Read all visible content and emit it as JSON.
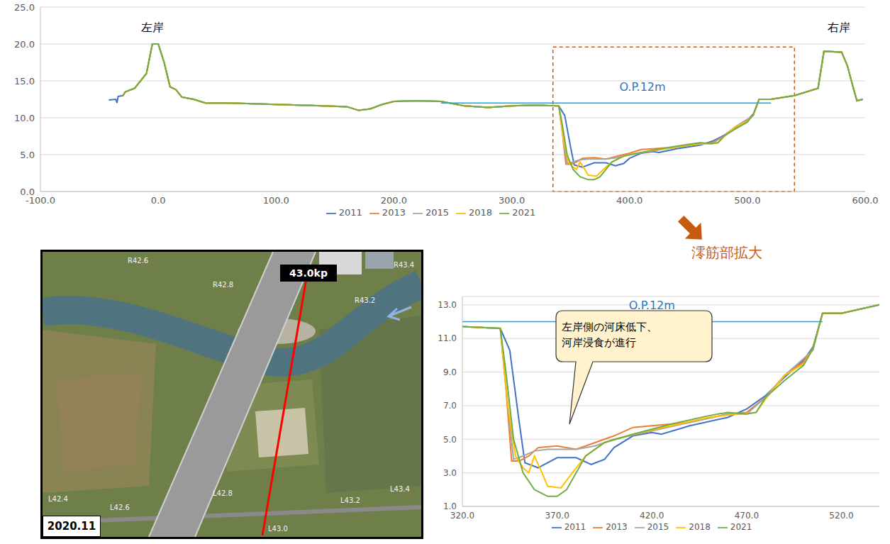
{
  "chart_data": [
    {
      "type": "line",
      "xlim": [
        -100,
        600
      ],
      "xticks": [
        {
          "value": -100,
          "label": "-100.0"
        },
        {
          "value": 0,
          "label": "0.0"
        },
        {
          "value": 100,
          "label": "100.0"
        },
        {
          "value": 200,
          "label": "200.0"
        },
        {
          "value": 300,
          "label": "300.0"
        },
        {
          "value": 400,
          "label": "400.0"
        },
        {
          "value": 500,
          "label": "500.0"
        },
        {
          "value": 600,
          "label": "600.0"
        }
      ],
      "ylim": [
        0,
        25
      ],
      "yticks": [
        {
          "value": 0,
          "label": "0.0"
        },
        {
          "value": 5,
          "label": "5.0"
        },
        {
          "value": 10,
          "label": "10.0"
        },
        {
          "value": 15,
          "label": "15.0"
        },
        {
          "value": 20,
          "label": "20.0"
        },
        {
          "value": 25,
          "label": "25.0"
        }
      ],
      "grid": true,
      "legend": "bottom",
      "annotations": [
        {
          "text": "左岸",
          "x": -5,
          "y": 22.3
        },
        {
          "text": "右岸",
          "x": 578,
          "y": 22.3
        }
      ],
      "reference_line": {
        "text": "O.P.12m",
        "y": 12,
        "x": [
          240,
          520
        ],
        "label_x": 411,
        "label_y": 14.2
      },
      "highlight": {
        "x": [
          335,
          540
        ],
        "y": [
          0,
          19.6
        ]
      },
      "series": [
        {
          "name": "2011",
          "color": "#4472c4",
          "x": [
            -42,
            -36,
            -35,
            -34,
            -30,
            -28,
            -20,
            -10,
            -5,
            0,
            5,
            10,
            15,
            20,
            30,
            40,
            60,
            80,
            100,
            120,
            140,
            160,
            170,
            180,
            190,
            200,
            220,
            240,
            260,
            280,
            300,
            320,
            340,
            345,
            350,
            353,
            360,
            370,
            380,
            388,
            395,
            400,
            410,
            420,
            425,
            440,
            460,
            470,
            480,
            490,
            500,
            505,
            510,
            520,
            540,
            560,
            565,
            580,
            585,
            590,
            593,
            598
          ],
          "values": [
            12.4,
            12.5,
            12.0,
            12.9,
            13.0,
            13.5,
            14.0,
            16.0,
            20.0,
            20.0,
            17.5,
            14.2,
            13.8,
            12.8,
            12.5,
            12.0,
            12.0,
            11.9,
            11.8,
            11.7,
            11.6,
            11.5,
            11.0,
            11.2,
            11.8,
            12.2,
            12.3,
            12.2,
            11.6,
            11.4,
            11.6,
            11.7,
            11.6,
            10.3,
            6.0,
            3.6,
            3.3,
            3.9,
            3.9,
            3.5,
            3.8,
            4.5,
            5.2,
            5.4,
            5.3,
            5.8,
            6.3,
            6.8,
            7.6,
            8.7,
            9.7,
            10.5,
            12.5,
            12.5,
            13.0,
            14.0,
            19.0,
            18.9,
            17.0,
            14.0,
            12.3,
            12.5
          ]
        },
        {
          "name": "2013",
          "color": "#ed7d31",
          "x": [
            -30,
            -28,
            -20,
            -10,
            -5,
            0,
            5,
            10,
            15,
            20,
            30,
            40,
            60,
            80,
            100,
            120,
            140,
            160,
            170,
            180,
            190,
            200,
            220,
            240,
            260,
            280,
            300,
            320,
            340,
            343,
            346,
            350,
            355,
            360,
            370,
            380,
            390,
            400,
            410,
            420,
            440,
            460,
            470,
            480,
            490,
            500,
            505,
            510,
            520,
            540,
            560,
            565,
            580,
            585,
            590,
            593,
            598
          ],
          "values": [
            13.0,
            13.5,
            14.0,
            16.0,
            20.0,
            20.0,
            17.5,
            14.2,
            13.8,
            12.8,
            12.5,
            12.0,
            12.0,
            11.9,
            11.8,
            11.7,
            11.6,
            11.5,
            11.0,
            11.2,
            11.8,
            12.2,
            12.3,
            12.2,
            11.6,
            11.4,
            11.6,
            11.7,
            11.6,
            8.0,
            3.7,
            3.7,
            4.0,
            4.5,
            4.6,
            4.4,
            4.8,
            5.2,
            5.7,
            5.8,
            6.0,
            6.5,
            6.6,
            7.5,
            8.8,
            9.6,
            10.4,
            12.5,
            12.5,
            13.0,
            14.0,
            19.0,
            18.9,
            17.0,
            14.0,
            12.3,
            12.5
          ]
        },
        {
          "name": "2015",
          "color": "#a5a5a5",
          "x": [
            -30,
            -28,
            -20,
            -10,
            -5,
            0,
            5,
            10,
            15,
            20,
            30,
            40,
            60,
            80,
            100,
            120,
            140,
            160,
            170,
            180,
            190,
            200,
            220,
            240,
            260,
            280,
            300,
            320,
            340,
            344,
            347,
            352,
            358,
            365,
            380,
            390,
            400,
            420,
            440,
            460,
            470,
            480,
            490,
            505,
            510,
            520,
            540,
            560,
            565,
            580,
            585,
            590,
            593,
            598
          ],
          "values": [
            13.0,
            13.5,
            14.0,
            16.0,
            20.0,
            20.0,
            17.5,
            14.2,
            13.8,
            12.8,
            12.5,
            12.0,
            12.0,
            11.9,
            11.8,
            11.7,
            11.6,
            11.5,
            11.0,
            11.2,
            11.8,
            12.2,
            12.3,
            12.2,
            11.6,
            11.4,
            11.6,
            11.7,
            11.6,
            7.0,
            3.8,
            4.0,
            4.3,
            4.4,
            4.4,
            4.6,
            5.0,
            5.5,
            6.0,
            6.5,
            6.5,
            7.5,
            8.8,
            10.3,
            12.5,
            12.5,
            13.0,
            14.0,
            19.0,
            18.9,
            17.0,
            14.0,
            12.3,
            12.5
          ]
        },
        {
          "name": "2018",
          "color": "#ffc000",
          "x": [
            -30,
            -28,
            -20,
            -10,
            -5,
            0,
            5,
            10,
            15,
            20,
            30,
            40,
            60,
            80,
            100,
            120,
            140,
            160,
            170,
            180,
            190,
            200,
            220,
            240,
            260,
            280,
            300,
            320,
            340,
            344,
            348,
            352,
            355,
            358,
            362,
            365,
            372,
            378,
            385,
            395,
            410,
            430,
            450,
            465,
            475,
            480,
            490,
            500,
            505,
            510,
            520,
            540,
            560,
            565,
            580,
            585,
            590,
            593,
            598
          ],
          "values": [
            13.0,
            13.5,
            14.0,
            16.0,
            20.0,
            20.0,
            17.5,
            14.2,
            13.8,
            12.8,
            12.5,
            12.0,
            12.0,
            11.9,
            11.8,
            11.7,
            11.6,
            11.5,
            11.0,
            11.2,
            11.8,
            12.2,
            12.3,
            12.2,
            11.6,
            11.4,
            11.6,
            11.7,
            11.6,
            7.0,
            4.0,
            3.3,
            3.0,
            4.0,
            3.0,
            2.2,
            2.1,
            3.0,
            4.0,
            4.8,
            5.3,
            5.8,
            6.3,
            6.5,
            6.6,
            7.4,
            8.8,
            9.5,
            10.4,
            12.5,
            12.5,
            13.0,
            14.0,
            19.0,
            18.9,
            17.0,
            14.0,
            12.3,
            12.5
          ]
        },
        {
          "name": "2021",
          "color": "#70ad47",
          "x": [
            -30,
            -28,
            -20,
            -10,
            -5,
            0,
            5,
            10,
            15,
            20,
            30,
            40,
            60,
            80,
            100,
            120,
            140,
            160,
            170,
            180,
            190,
            200,
            220,
            240,
            260,
            280,
            300,
            320,
            340,
            343,
            347,
            352,
            358,
            365,
            370,
            375,
            380,
            385,
            395,
            410,
            430,
            450,
            460,
            470,
            475,
            480,
            490,
            500,
            505,
            510,
            520,
            540,
            560,
            565,
            580,
            585,
            590,
            593,
            598
          ],
          "values": [
            13.0,
            13.5,
            14.0,
            16.0,
            20.0,
            20.0,
            17.5,
            14.2,
            13.8,
            12.8,
            12.5,
            12.0,
            12.0,
            11.9,
            11.8,
            11.7,
            11.6,
            11.5,
            11.0,
            11.2,
            11.8,
            12.2,
            12.3,
            12.2,
            11.6,
            11.4,
            11.6,
            11.7,
            11.6,
            9.0,
            5.0,
            3.0,
            2.0,
            1.6,
            1.6,
            2.0,
            3.0,
            4.0,
            4.8,
            5.3,
            5.9,
            6.4,
            6.6,
            6.5,
            6.6,
            7.5,
            8.5,
            9.4,
            10.4,
            12.5,
            12.5,
            13.0,
            14.0,
            19.0,
            18.9,
            17.0,
            14.0,
            12.3,
            12.5
          ]
        }
      ]
    },
    {
      "type": "line",
      "xlim": [
        320,
        540
      ],
      "xticks": [
        {
          "value": 320,
          "label": "320.0"
        },
        {
          "value": 370,
          "label": "370.0"
        },
        {
          "value": 420,
          "label": "420.0"
        },
        {
          "value": 470,
          "label": "470.0"
        },
        {
          "value": 520,
          "label": "520.0"
        }
      ],
      "ylim": [
        1,
        13.5
      ],
      "yticks": [
        {
          "value": 1,
          "label": "1.0"
        },
        {
          "value": 3,
          "label": "3.0"
        },
        {
          "value": 5,
          "label": "5.0"
        },
        {
          "value": 7,
          "label": "7.0"
        },
        {
          "value": 9,
          "label": "9.0"
        },
        {
          "value": 11,
          "label": "11.0"
        },
        {
          "value": 13,
          "label": "13.0"
        }
      ],
      "grid": true,
      "legend": "bottom",
      "reference_line": {
        "text": "O.P.12m",
        "y": 12,
        "x": [
          320,
          510
        ],
        "label_x": 420,
        "label_y": 13.0
      },
      "callout": [
        "左岸側の河床低下、",
        "河岸浸食が進行"
      ],
      "series": [
        {
          "name": "2011",
          "color": "#4472c4",
          "x": [
            320,
            340,
            345,
            350,
            353,
            360,
            370,
            380,
            388,
            395,
            400,
            410,
            420,
            425,
            440,
            460,
            470,
            480,
            490,
            500,
            505,
            510,
            520,
            540
          ],
          "values": [
            11.7,
            11.6,
            10.3,
            6.0,
            3.6,
            3.3,
            3.9,
            3.9,
            3.5,
            3.8,
            4.5,
            5.2,
            5.4,
            5.3,
            5.8,
            6.3,
            6.8,
            7.6,
            8.7,
            9.7,
            10.5,
            12.5,
            12.5,
            13.0
          ]
        },
        {
          "name": "2013",
          "color": "#ed7d31",
          "x": [
            320,
            340,
            343,
            346,
            350,
            355,
            360,
            370,
            380,
            390,
            400,
            410,
            420,
            440,
            460,
            470,
            480,
            490,
            500,
            505,
            510,
            520,
            540
          ],
          "values": [
            11.7,
            11.6,
            8.0,
            3.7,
            3.7,
            4.0,
            4.5,
            4.6,
            4.4,
            4.8,
            5.2,
            5.7,
            5.8,
            6.0,
            6.5,
            6.6,
            7.5,
            8.8,
            9.6,
            10.4,
            12.5,
            12.5,
            13.0
          ]
        },
        {
          "name": "2015",
          "color": "#a5a5a5",
          "x": [
            320,
            340,
            344,
            347,
            352,
            358,
            365,
            380,
            390,
            400,
            420,
            440,
            460,
            470,
            480,
            490,
            505,
            510,
            520,
            540
          ],
          "values": [
            11.7,
            11.6,
            7.0,
            3.8,
            4.0,
            4.3,
            4.4,
            4.4,
            4.6,
            5.0,
            5.5,
            6.0,
            6.5,
            6.5,
            7.5,
            8.8,
            10.3,
            12.5,
            12.5,
            13.0
          ]
        },
        {
          "name": "2018",
          "color": "#ffc000",
          "x": [
            320,
            340,
            344,
            348,
            352,
            355,
            358,
            362,
            365,
            372,
            378,
            385,
            395,
            410,
            430,
            450,
            465,
            475,
            480,
            490,
            500,
            505,
            510,
            520,
            540
          ],
          "values": [
            11.7,
            11.6,
            7.0,
            4.0,
            3.3,
            3.0,
            4.0,
            3.0,
            2.2,
            2.1,
            3.0,
            4.0,
            4.8,
            5.3,
            5.8,
            6.3,
            6.5,
            6.6,
            7.4,
            8.8,
            9.5,
            10.4,
            12.5,
            12.5,
            13.0
          ]
        },
        {
          "name": "2021",
          "color": "#70ad47",
          "x": [
            320,
            340,
            343,
            347,
            352,
            358,
            365,
            370,
            375,
            380,
            385,
            395,
            410,
            430,
            450,
            460,
            470,
            475,
            480,
            490,
            500,
            505,
            510,
            520,
            540
          ],
          "values": [
            11.7,
            11.6,
            9.0,
            5.0,
            3.0,
            2.0,
            1.6,
            1.6,
            2.0,
            3.0,
            4.0,
            4.8,
            5.3,
            5.9,
            6.4,
            6.6,
            6.5,
            6.6,
            7.5,
            8.5,
            9.4,
            10.4,
            12.5,
            12.5,
            13.0
          ]
        }
      ]
    }
  ],
  "zoom_label": "澪筋部拡大",
  "photo": {
    "date": "2020.11",
    "kp": "43.0kp",
    "labels": [
      "R42.6",
      "R42.8",
      "R43.2",
      "R43.4",
      "L42.4",
      "L42.6",
      "L42.8",
      "L43.0",
      "L43.2",
      "L43.4"
    ]
  }
}
